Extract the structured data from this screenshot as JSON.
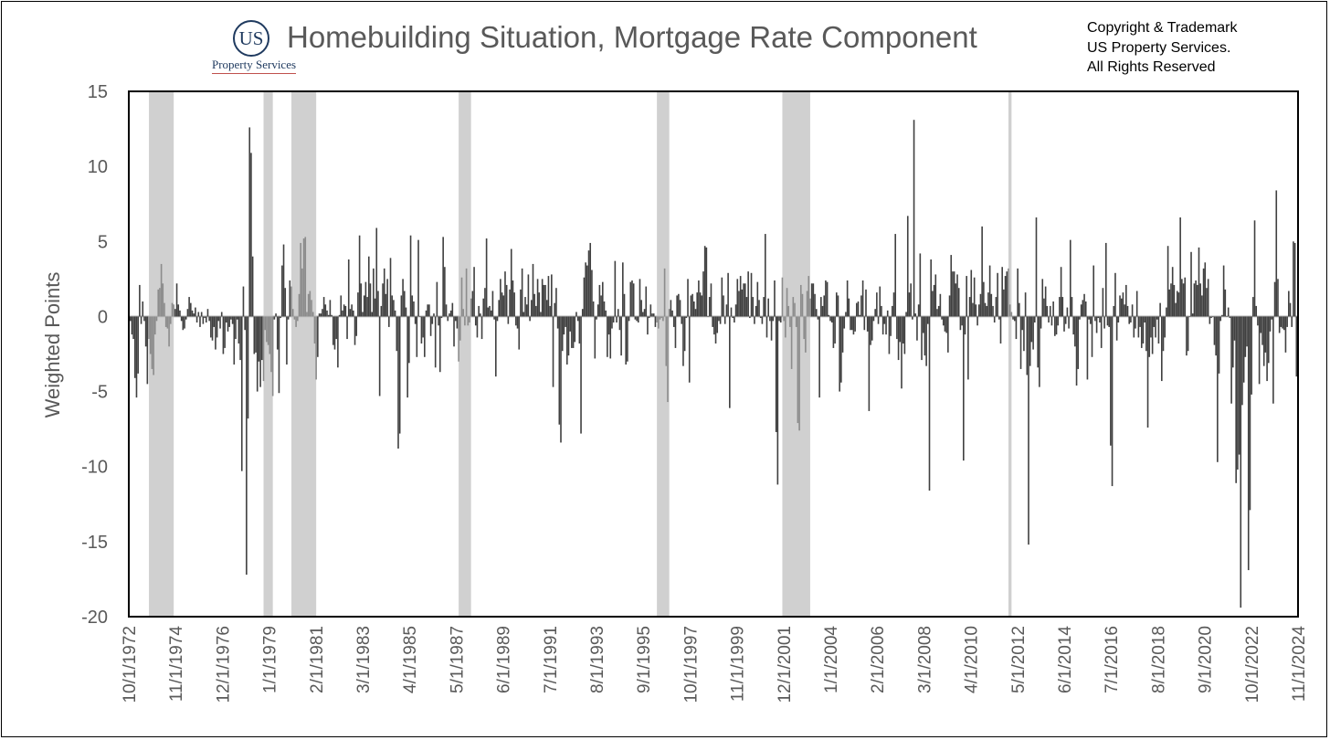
{
  "logo": {
    "mark": "US",
    "name": "Property Services"
  },
  "title": "Homebuilding Situation, Mortgage Rate Component",
  "copyright": [
    "Copyright & Trademark",
    "US Property Services.",
    "All Rights Reserved"
  ],
  "colors": {
    "bar": "#404040",
    "recession": "#d0d0d0",
    "bar_in_recession": "#8c8c8c",
    "axis_text": "#595959",
    "zero_line": "#bfbfbf"
  },
  "chart_data": {
    "type": "bar",
    "title": "Homebuilding Situation, Mortgage Rate Component",
    "ylabel": "Weighted Points",
    "xlabel": "",
    "ylim": [
      -20,
      15
    ],
    "yticks": [
      15,
      10,
      5,
      0,
      -5,
      -10,
      -15,
      -20
    ],
    "xticks": [
      "10/1/1972",
      "11/1/1974",
      "12/1/1976",
      "1/1/1979",
      "2/1/1981",
      "3/1/1983",
      "4/1/1985",
      "5/1/1987",
      "6/1/1989",
      "7/1/1991",
      "8/1/1993",
      "9/1/1995",
      "10/1/1997",
      "11/1/1999",
      "12/1/2001",
      "1/1/2004",
      "2/1/2006",
      "3/1/2008",
      "4/1/2010",
      "5/1/2012",
      "6/1/2014",
      "7/1/2016",
      "8/1/2018",
      "9/1/2020",
      "10/1/2022",
      "11/1/2024"
    ],
    "x_start": "1972-10",
    "series": [
      {
        "name": "",
        "values": [
          0.2,
          -0.3,
          -1.2,
          -1.5,
          -4.1,
          -5.4,
          -3.8,
          2.1,
          -0.5,
          1,
          -0.3,
          -2,
          -4.5,
          -1.5,
          -2.5,
          -3.5,
          -3.9,
          -1.2,
          -0.3,
          1.8,
          1.9,
          3.5,
          2.2,
          0.9,
          -0.7,
          -0.8,
          -2,
          -0.5,
          0.9,
          0.8,
          0.5,
          2.2,
          0.8,
          0.4,
          -0.3,
          -0.9,
          -0.8,
          -0.2,
          0.5,
          1.3,
          0.9,
          0.4,
          0.2,
          0.6,
          -0.4,
          0.3,
          -0.7,
          0.3,
          -0.5,
          -0.1,
          -0.4,
          0.5,
          -0.3,
          -1.4,
          -1.6,
          -0.7,
          -2.2,
          -1.4,
          -0.3,
          -0.8,
          0.3,
          -2.5,
          -2.1,
          -0.4,
          -1,
          -0.7,
          -0.2,
          -0.5,
          -3.2,
          -1.5,
          -0.2,
          -1.8,
          -2.9,
          -10.3,
          2,
          -0.9,
          -17.2,
          -6.8,
          12.6,
          10.9,
          4,
          -2.5,
          -2.4,
          -5,
          -3,
          -4.7,
          -2.9,
          -4.3,
          -0.9,
          -1.7,
          -1.9,
          -2.5,
          -3.7,
          -5.3,
          -0.2,
          0.2,
          -2.2,
          -5.1,
          -0.1,
          3.4,
          4.8,
          1.9,
          -3.2,
          -0.2,
          2.4,
          2,
          0.5,
          -0.2,
          -0.7,
          -0.3,
          1.5,
          4.9,
          3.2,
          5.2,
          5.3,
          0.3,
          1.5,
          1.7,
          1.1,
          0.3,
          -1.8,
          -4.2,
          -2.7,
          0.2,
          0.2,
          0.5,
          1.3,
          0.8,
          0.4,
          0.1,
          1.1,
          0.1,
          -1.9,
          -2.2,
          -1.5,
          -3.4,
          0.1,
          1.4,
          0.4,
          0.8,
          0.7,
          -1.5,
          3.8,
          0.5,
          0.8,
          0.4,
          -1.9,
          -1.3,
          1.6,
          5.4,
          2.2,
          0.3,
          1.4,
          2.3,
          1.3,
          4,
          2.2,
          0.3,
          3.2,
          1.2,
          5.9,
          1.7,
          -5.3,
          0.7,
          2.2,
          3.2,
          1.5,
          2.5,
          -0.7,
          3.9,
          1.4,
          1.1,
          0.4,
          -2.3,
          -8.8,
          -7.8,
          1.4,
          2.5,
          1.7,
          0.6,
          -5.4,
          -3.1,
          5.4,
          1.4,
          1,
          -0.5,
          -2.7,
          5.1,
          0,
          -1.8,
          -1.4,
          -2.7,
          0.4,
          0.8,
          0.8,
          -1.3,
          -0.5,
          0.2,
          -3.4,
          2.3,
          -0.6,
          -3.7,
          -0.1,
          5.3,
          3.3,
          0.8,
          -0.3,
          0.2,
          0.4,
          0.9,
          -2,
          -0.3,
          -0.8,
          -3,
          -1.6,
          2.6,
          0.5,
          -0.6,
          3.2,
          -0.6,
          -0.4,
          1.2,
          1.7,
          3.3,
          -0.6,
          -1.4,
          0.7,
          0.2,
          -1.5,
          1.2,
          1.9,
          5.2,
          0.6,
          0.7,
          0.4,
          1.7,
          -0.2,
          -4,
          -0.3,
          1.1,
          2.5,
          1.6,
          1.4,
          3,
          2.1,
          -0.5,
          1.8,
          4.5,
          2.4,
          1.6,
          -0.6,
          -0.8,
          -2.2,
          1.8,
          3.2,
          0.3,
          1.3,
          0.8,
          2.8,
          -0.3,
          1.1,
          3.5,
          1.5,
          0.7,
          2.5,
          1.6,
          0.3,
          2.5,
          2.1,
          2.1,
          1.1,
          2.7,
          0.7,
          2.8,
          -4.7,
          0.9,
          1.9,
          -0.8,
          -7.2,
          -8.4,
          -2.3,
          -1.2,
          -0.7,
          -3.2,
          -2.6,
          -1,
          -2.1,
          -2.1,
          -1.7,
          0.3,
          -0.3,
          -1.8,
          -7.8,
          0.5,
          2.6,
          3.6,
          3.4,
          4.4,
          4.9,
          3.1,
          1,
          -2.8,
          -0.2,
          0.8,
          2.1,
          1.4,
          2.3,
          1,
          0.4,
          -2.7,
          -1.2,
          -2.8,
          -0.8,
          -0.4,
          3.7,
          -0.4,
          0.5,
          -0.9,
          -2.6,
          3.6,
          1.5,
          -3.2,
          -3,
          -0.3,
          2.3,
          2.4,
          2.2,
          -0.2,
          -0.3,
          -0.4,
          2.5,
          1.1,
          0.3,
          0.5,
          2,
          -1.2,
          -0.1,
          0.8,
          0.2,
          0.2,
          -0.7,
          -0.4,
          -0.8,
          -0.2,
          -0.1,
          -0.3,
          3.2,
          -3.3,
          -5.7,
          0.5,
          1.1,
          0.4,
          -0.7,
          -2.1,
          1.4,
          1.5,
          1.1,
          -0.5,
          -3.3,
          -2.3,
          -0.1,
          2.5,
          -4.4,
          1.4,
          1.5,
          1,
          0.5,
          1.6,
          2.4,
          1.6,
          1.4,
          3,
          4.7,
          4.6,
          0,
          1.3,
          2.2,
          -0.7,
          -1.2,
          -1.8,
          -1.1,
          -0.3,
          -0.5,
          2.6,
          1.4,
          -0.5,
          0.8,
          2.9,
          -6.1,
          0.6,
          -0.1,
          -0.4,
          0.8,
          2.5,
          1.7,
          2.7,
          1.8,
          2.2,
          2.2,
          1.3,
          3,
          -0.1,
          2.9,
          1.3,
          -0.5,
          0.7,
          2.3,
          1.1,
          -0.1,
          -0.5,
          1.3,
          5.5,
          -1.4,
          1.2,
          -0.3,
          -1.6,
          -0.3,
          2.4,
          -7.7,
          -11.2,
          -0.3,
          -0.4,
          2.6,
          -0.3,
          -1.4,
          1.9,
          0.7,
          -0.7,
          -3.5,
          1.3,
          0.9,
          -0.7,
          -7.1,
          -7.6,
          2.1,
          1.5,
          -1.5,
          -2.4,
          1.7,
          2.7,
          1.2,
          2.2,
          2.2,
          1.5,
          0.5,
          -0.2,
          -5.4,
          1.3,
          0.7,
          1.4,
          2.4,
          2.3,
          0.1,
          -0.3,
          -0.4,
          -2.1,
          -1.8,
          1.6,
          1.4,
          -5,
          -4.4,
          -2.4,
          -0.8,
          0.3,
          2.4,
          1.2,
          -0.9,
          -0.9,
          -1.2,
          -1,
          0.9,
          1,
          0.1,
          1.4,
          2.4,
          -0.9,
          1.8,
          -1,
          -6.3,
          -1.9,
          -1.6,
          -0.3,
          0.5,
          1.6,
          -0.5,
          2,
          0.7,
          -1.2,
          -0.5,
          -1.2,
          0.4,
          -2.5,
          -1.3,
          0.7,
          1.6,
          5.5,
          -1.5,
          -2.9,
          -1.7,
          -4.8,
          -1.8,
          -2.5,
          0.3,
          6.7,
          1.6,
          2.2,
          -0.2,
          13.1,
          0.2,
          -1.6,
          0.8,
          4.2,
          -2.9,
          -1.1,
          -2.6,
          -3.3,
          -0.5,
          -11.6,
          3.8,
          1.7,
          2.1,
          2.8,
          0.5,
          0.7,
          1.5,
          -0.2,
          -0.6,
          -1,
          -1.1,
          -2.4,
          1.4,
          4.1,
          3,
          3,
          2.2,
          2.8,
          1.9,
          -0.9,
          -0.6,
          -9.6,
          -1.2,
          2.7,
          -4.2,
          1.3,
          3.1,
          0.9,
          2.6,
          0.8,
          -0.6,
          0.8,
          1.5,
          6,
          2.3,
          0.9,
          0.7,
          1.6,
          3.4,
          1.5,
          0.7,
          -0.4,
          1.3,
          2.9,
          -0.2,
          -1.8,
          3.3,
          1.8,
          2.7,
          3,
          3.2,
          0.8,
          0.3,
          -0.2,
          -0.3,
          -1.5,
          3.2,
          0.9,
          -3.5,
          -0.9,
          -2.3,
          1.6,
          -3.9,
          -15.2,
          -3.3,
          -1.7,
          -2.2,
          -0.4,
          6.6,
          -3.4,
          -4.7,
          -0.8,
          2.5,
          1.2,
          2,
          0.7,
          -0.4,
          0.7,
          -0.6,
          1,
          -1.3,
          -1.2,
          -0.6,
          1.3,
          3.3,
          1.3,
          -1,
          -0.5,
          0.6,
          -0.8,
          5.1,
          1.3,
          -1.2,
          -2,
          -4.6,
          -3.5,
          -0.2,
          0.8,
          1.1,
          1.5,
          1,
          -4.2,
          -0.2,
          -0.5,
          -2.7,
          3.4,
          -0.3,
          -1.1,
          -0.1,
          -0.4,
          -2.1,
          1.9,
          -0.8,
          4.9,
          -0.6,
          -0.7,
          -8.6,
          -11.3,
          0.7,
          2.9,
          -1.6,
          -0.4,
          1.4,
          1.2,
          1.6,
          0.8,
          2.1,
          0.7,
          -0.5,
          -0.4,
          0.8,
          -1.4,
          -0.8,
          1.7,
          -1.4,
          -0.7,
          -2.1,
          -1.8,
          -0.4,
          -2.3,
          -7.4,
          -2.7,
          -1.4,
          -2.5,
          -0.7,
          -1.4,
          -0.2,
          -1.8,
          0.9,
          -4.3,
          -2.3,
          -1.4,
          0.6,
          4.7,
          1.8,
          2.2,
          3.3,
          2.1,
          0.9,
          1.7,
          1.6,
          6.6,
          2.5,
          2.2,
          2.6,
          -2.6,
          -2.3,
          0,
          4.3,
          0.2,
          2.2,
          2.4,
          2.1,
          4.6,
          2.2,
          1.4,
          3.2,
          3.6,
          1.9,
          2.5,
          -0.5,
          -0.1,
          0,
          -1.9,
          -2.6,
          -9.7,
          -3.8,
          -0.3,
          0.1,
          3.4,
          1.8,
          0,
          0.6,
          -0.1,
          -5.8,
          -3.4,
          -1.6,
          -11.1,
          -10.2,
          -9.2,
          -19.4,
          -5.9,
          -4.4,
          -2.7,
          -2,
          -16.9,
          -12.9,
          -5.2,
          1.3,
          6.4,
          0.7,
          -0.6,
          -4.5,
          -1.1,
          -1.9,
          -3.3,
          -2.4,
          -4.3,
          -3.1,
          -1,
          -0.2,
          -5.8,
          2.3,
          8.4,
          2.5,
          -1.1,
          -0.7,
          -0.8,
          -0.9,
          -2.4,
          -0.7,
          1.7,
          0.9,
          -0.7,
          5,
          4.9,
          -4,
          -4
        ]
      }
    ],
    "recessions": [
      [
        "1973-11",
        "1975-03"
      ],
      [
        "1980-01",
        "1980-07"
      ],
      [
        "1981-07",
        "1982-11"
      ],
      [
        "1990-07",
        "1991-03"
      ],
      [
        "2001-03",
        "2001-11"
      ],
      [
        "2007-12",
        "2009-06"
      ],
      [
        "2020-02",
        "2020-04"
      ]
    ],
    "grid": false,
    "legend": "none"
  }
}
